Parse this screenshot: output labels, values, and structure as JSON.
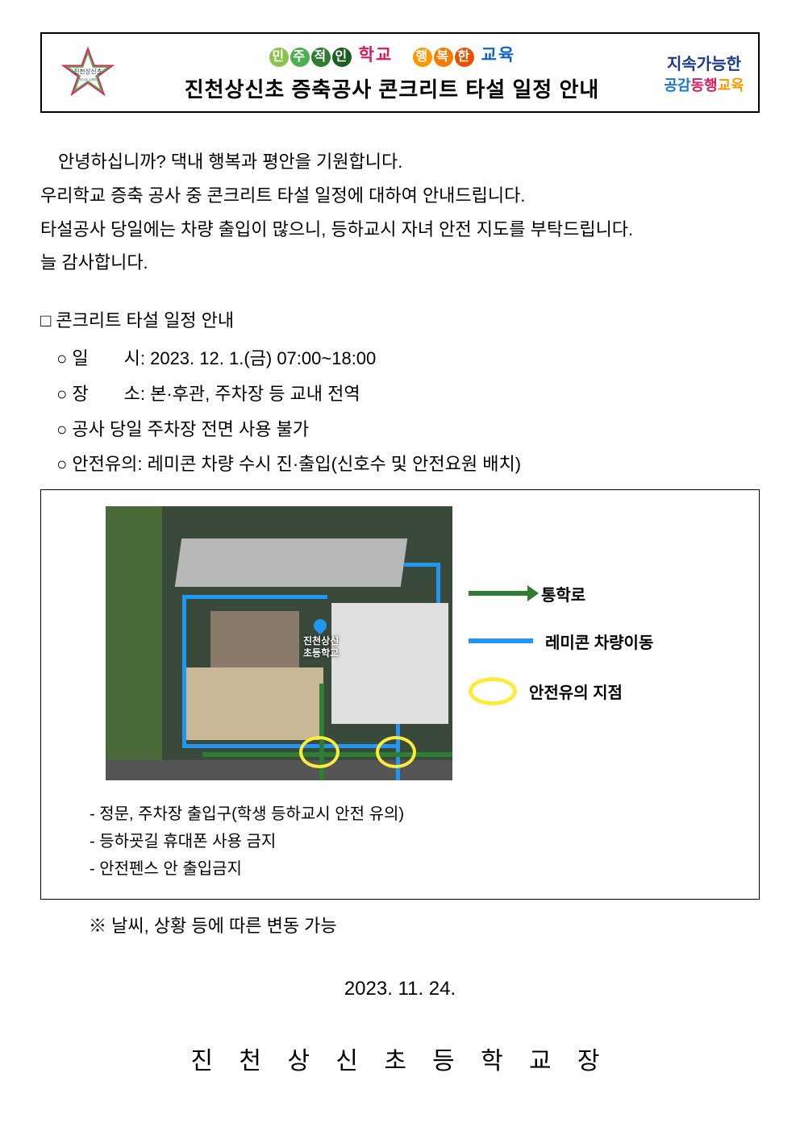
{
  "header": {
    "logo_left_text": "진천상신초",
    "logo_left_sub": "Since 1955",
    "slogan_parts": [
      {
        "text": "민",
        "bg": "#8bc34a"
      },
      {
        "text": "주",
        "bg": "#4caf50"
      },
      {
        "text": "적",
        "bg": "#2e7d32"
      },
      {
        "text": "인",
        "bg": "#1b5e20"
      }
    ],
    "slogan_word1": "학교",
    "slogan_word1_color": "#d81b60",
    "slogan_parts2": [
      {
        "text": "행",
        "bg": "#ff9800"
      },
      {
        "text": "복",
        "bg": "#f57c00"
      },
      {
        "text": "한",
        "bg": "#e65100"
      }
    ],
    "slogan_word2": "교육",
    "slogan_word2_color": "#1565c0",
    "title": "진천상신초 증축공사 콘크리트 타설 일정 안내",
    "logo_right_line1": "지속가능한",
    "logo_right_line2_a": "공감",
    "logo_right_line2_a_color": "#1976d2",
    "logo_right_line2_b": "동행",
    "logo_right_line2_b_color": "#d81b60",
    "logo_right_line2_c": "교육",
    "logo_right_line2_c_color": "#ff9800"
  },
  "body": {
    "p1": "안녕하십니까? 댁내 행복과 평안을 기원합니다.",
    "p2": "우리학교 증축 공사 중 콘크리트 타설 일정에 대하여 안내드립니다.",
    "p3": "타설공사 당일에는 차량 출입이 많으니, 등하교시 자녀 안전 지도를 부탁드립니다.",
    "p4": "늘 감사합니다."
  },
  "section": {
    "title": "□ 콘크리트 타설 일정 안내",
    "items": [
      "○ 일　　시: 2023. 12. 1.(금) 07:00~18:00",
      "○ 장　　소: 본·후관, 주차장 등 교내 전역",
      "○ 공사 당일 주차장 전면 사용 불가",
      "○ 안전유의: 레미콘 차량 수시 진·출입(신호수 및 안전요원 배치)"
    ]
  },
  "map": {
    "label_line1": "진천상신",
    "label_line2": "초등학교",
    "legend": {
      "route": "통학로",
      "truck": "레미콘 차량이동",
      "caution": "안전유의 지점"
    },
    "route_color_walk": "#2e7d32",
    "route_color_truck": "#2196f3",
    "caution_color": "#ffeb3b",
    "notes": [
      "- 정문, 주차장 출입구(학생 등하교시 안전 유의)",
      "- 등하굣길 휴대폰 사용 금지",
      "- 안전펜스 안 출입금지"
    ]
  },
  "footnote": "※ 날씨, 상황 등에 따른 변동 가능",
  "date": "2023. 11. 24.",
  "signature": "진 천 상 신 초 등 학 교 장"
}
